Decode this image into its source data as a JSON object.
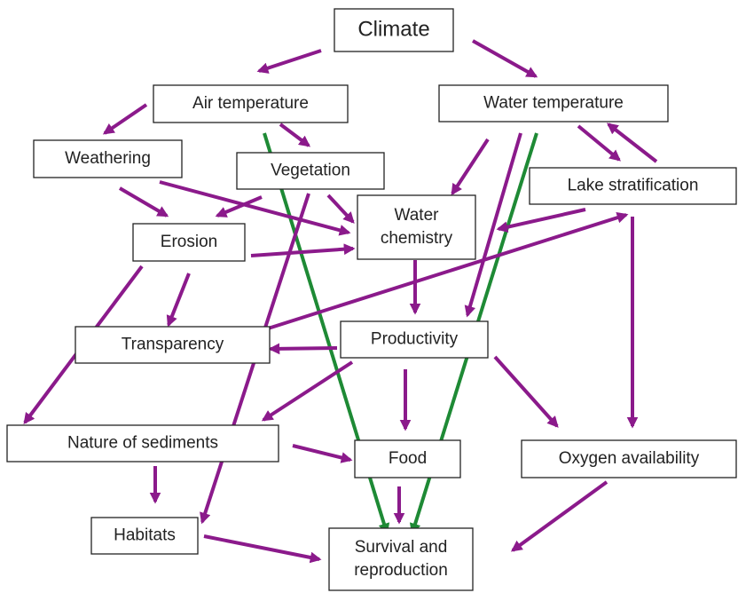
{
  "nodes": [
    {
      "label": [
        "Climate"
      ]
    },
    {
      "label": [
        "Air temperature"
      ]
    },
    {
      "label": [
        "Water temperature"
      ]
    },
    {
      "label": [
        "Weathering"
      ]
    },
    {
      "label": [
        "Vegetation"
      ]
    },
    {
      "label": [
        "Lake stratification"
      ]
    },
    {
      "label": [
        "Water",
        "chemistry"
      ]
    },
    {
      "label": [
        "Erosion"
      ]
    },
    {
      "label": [
        "Transparency"
      ]
    },
    {
      "label": [
        "Productivity"
      ]
    },
    {
      "label": [
        "Nature of sediments"
      ]
    },
    {
      "label": [
        "Food"
      ]
    },
    {
      "label": [
        "Oxygen availability"
      ]
    },
    {
      "label": [
        "Habitats"
      ]
    },
    {
      "label": [
        "Survival and",
        "reproduction"
      ]
    }
  ]
}
